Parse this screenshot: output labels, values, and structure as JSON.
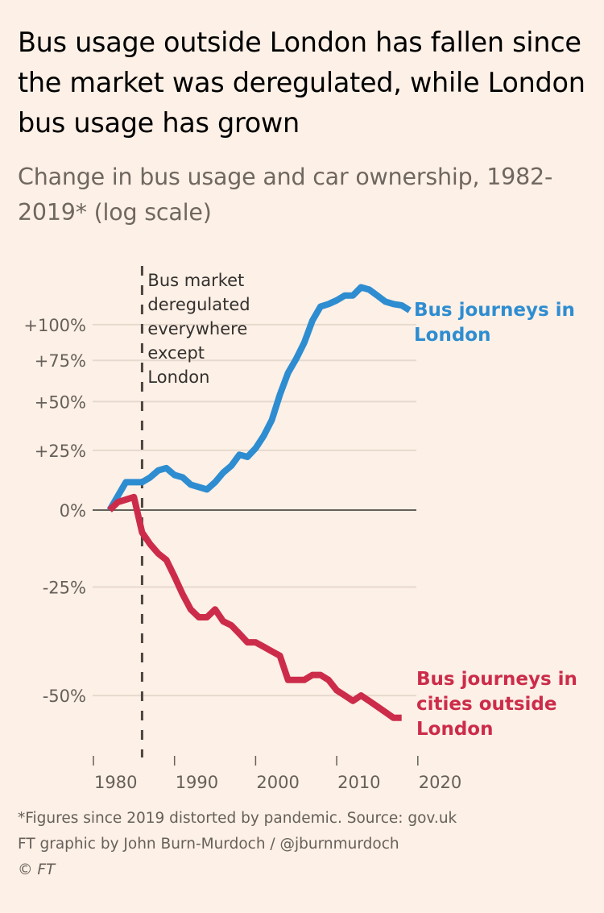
{
  "header": {
    "title": "Bus usage outside London has fallen since the market was deregulated, while London bus usage has grown",
    "subtitle": "Change in bus usage and car ownership, 1982-2019* (log scale)"
  },
  "footer": {
    "note": "*Figures since 2019 distorted by pandemic. Source: gov.uk",
    "credit": "FT graphic by John Burn-Murdoch / @jburnmurdoch",
    "copyright": "© FT"
  },
  "colors": {
    "background": "#fdf0e6",
    "london": "#2e8dd1",
    "outside_london": "#cc2c4a",
    "gridline": "#e6d9ce",
    "zero_line": "#66605a",
    "annotation_line": "#4d4540"
  },
  "chart_data": {
    "type": "line",
    "title": "Bus usage outside London has fallen since the market was deregulated, while London bus usage has grown",
    "subtitle": "Change in bus usage and car ownership, 1982-2019* (log scale)",
    "xlabel": "",
    "ylabel": "",
    "y_scale": "log",
    "xlim": [
      1980,
      2020
    ],
    "ylim": [
      -55,
      135
    ],
    "y_ticks": [
      {
        "value": 100,
        "label": "+100%"
      },
      {
        "value": 75,
        "label": "+75%"
      },
      {
        "value": 50,
        "label": "+50%"
      },
      {
        "value": 25,
        "label": "+25%"
      },
      {
        "value": 0,
        "label": "0%"
      },
      {
        "value": -25,
        "label": "-25%"
      },
      {
        "value": -50,
        "label": "-50%"
      }
    ],
    "x_ticks": [
      {
        "value": 1980,
        "label": "1980"
      },
      {
        "value": 1990,
        "label": "1990"
      },
      {
        "value": 2000,
        "label": "2000"
      },
      {
        "value": 2010,
        "label": "2010"
      },
      {
        "value": 2020,
        "label": "2020"
      }
    ],
    "grid": true,
    "annotations": [
      {
        "x": 1986,
        "type": "vertical-dashed",
        "text": [
          "Bus market",
          "deregulated",
          "everywhere",
          "except",
          "London"
        ]
      }
    ],
    "series": [
      {
        "name": "Bus journeys in London",
        "label_lines": [
          "Bus journeys in",
          "London"
        ],
        "color": "#2e8dd1",
        "x": [
          1982,
          1984,
          1986,
          1987,
          1988,
          1989,
          1990,
          1991,
          1992,
          1993,
          1994,
          1995,
          1996,
          1997,
          1998,
          1999,
          2000,
          2001,
          2002,
          2003,
          2004,
          2005,
          2006,
          2007,
          2008,
          2009,
          2010,
          2011,
          2012,
          2013,
          2014,
          2015,
          2016,
          2017,
          2018,
          2019
        ],
        "values": [
          0,
          11,
          11,
          13,
          16,
          17,
          14,
          13,
          10,
          9,
          8,
          11,
          15,
          18,
          23,
          22,
          26,
          32,
          40,
          54,
          67,
          76,
          87,
          103,
          114,
          116,
          119,
          123,
          123,
          130,
          128,
          123,
          118,
          116,
          115,
          111
        ]
      },
      {
        "name": "Bus journeys in cities outside London",
        "label_lines": [
          "Bus journeys in",
          "cities outside",
          "London"
        ],
        "color": "#cc2c4a",
        "x": [
          1982,
          1983,
          1984,
          1985,
          1986,
          1987,
          1988,
          1989,
          1990,
          1991,
          1992,
          1993,
          1994,
          1995,
          1996,
          1997,
          1998,
          1999,
          2000,
          2001,
          2002,
          2003,
          2004,
          2005,
          2006,
          2007,
          2008,
          2009,
          2010,
          2011,
          2012,
          2013,
          2014,
          2015,
          2016,
          2017,
          2018
        ],
        "values": [
          0,
          3,
          4,
          5,
          -8,
          -12,
          -15,
          -17,
          -22,
          -27,
          -31,
          -33,
          -33,
          -31,
          -34,
          -35,
          -37,
          -39,
          -39,
          -40,
          -41,
          -42,
          -47,
          -47,
          -47,
          -46,
          -46,
          -47,
          -49,
          -50,
          -51,
          -50,
          -51,
          -52,
          -53,
          -54,
          -54
        ]
      }
    ]
  }
}
